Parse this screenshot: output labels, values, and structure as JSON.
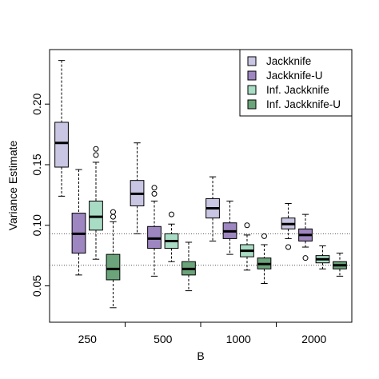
{
  "chart_data": {
    "type": "boxplot",
    "title": "",
    "xlabel": "B",
    "ylabel": "Variance Estimate",
    "categories": [
      "250",
      "500",
      "1000",
      "2000"
    ],
    "ylim": [
      0.02,
      0.245
    ],
    "yticks": [
      0.05,
      0.1,
      0.15,
      0.2
    ],
    "ytick_labels": [
      "0.05",
      "0.10",
      "0.15",
      "0.20"
    ],
    "reference_lines": [
      0.093,
      0.067
    ],
    "grid": false,
    "legend_position": "top-right",
    "series": [
      {
        "name": "Jackknife",
        "color": "#c9c6e3",
        "boxes": [
          {
            "lower_whisker": 0.124,
            "q1": 0.148,
            "median": 0.168,
            "q3": 0.185,
            "upper_whisker": 0.236,
            "outliers": []
          },
          {
            "lower_whisker": 0.093,
            "q1": 0.116,
            "median": 0.126,
            "q3": 0.137,
            "upper_whisker": 0.168,
            "outliers": []
          },
          {
            "lower_whisker": 0.087,
            "q1": 0.106,
            "median": 0.114,
            "q3": 0.122,
            "upper_whisker": 0.14,
            "outliers": []
          },
          {
            "lower_whisker": 0.089,
            "q1": 0.097,
            "median": 0.101,
            "q3": 0.106,
            "upper_whisker": 0.118,
            "outliers": [
              0.082
            ]
          }
        ]
      },
      {
        "name": "Jackknife-U",
        "color": "#9e86c1",
        "boxes": [
          {
            "lower_whisker": 0.059,
            "q1": 0.077,
            "median": 0.093,
            "q3": 0.11,
            "upper_whisker": 0.146,
            "outliers": []
          },
          {
            "lower_whisker": 0.058,
            "q1": 0.081,
            "median": 0.089,
            "q3": 0.099,
            "upper_whisker": 0.12,
            "outliers": [
              0.131,
              0.126
            ]
          },
          {
            "lower_whisker": 0.076,
            "q1": 0.089,
            "median": 0.095,
            "q3": 0.102,
            "upper_whisker": 0.12,
            "outliers": []
          },
          {
            "lower_whisker": 0.082,
            "q1": 0.087,
            "median": 0.092,
            "q3": 0.097,
            "upper_whisker": 0.109,
            "outliers": [
              0.073
            ]
          }
        ]
      },
      {
        "name": "Inf. Jackknife",
        "color": "#a9dcc4",
        "boxes": [
          {
            "lower_whisker": 0.072,
            "q1": 0.096,
            "median": 0.107,
            "q3": 0.12,
            "upper_whisker": 0.152,
            "outliers": [
              0.163,
              0.158
            ]
          },
          {
            "lower_whisker": 0.07,
            "q1": 0.081,
            "median": 0.087,
            "q3": 0.093,
            "upper_whisker": 0.101,
            "outliers": [
              0.109
            ]
          },
          {
            "lower_whisker": 0.063,
            "q1": 0.074,
            "median": 0.079,
            "q3": 0.084,
            "upper_whisker": 0.092,
            "outliers": [
              0.1
            ]
          },
          {
            "lower_whisker": 0.064,
            "q1": 0.069,
            "median": 0.072,
            "q3": 0.075,
            "upper_whisker": 0.083,
            "outliers": []
          }
        ]
      },
      {
        "name": "Inf. Jackknife-U",
        "color": "#6ba37a",
        "boxes": [
          {
            "lower_whisker": 0.032,
            "q1": 0.055,
            "median": 0.064,
            "q3": 0.076,
            "upper_whisker": 0.103,
            "outliers": [
              0.111,
              0.107
            ]
          },
          {
            "lower_whisker": 0.046,
            "q1": 0.059,
            "median": 0.064,
            "q3": 0.07,
            "upper_whisker": 0.086,
            "outliers": []
          },
          {
            "lower_whisker": 0.052,
            "q1": 0.064,
            "median": 0.068,
            "q3": 0.073,
            "upper_whisker": 0.084,
            "outliers": [
              0.091
            ]
          },
          {
            "lower_whisker": 0.058,
            "q1": 0.064,
            "median": 0.067,
            "q3": 0.07,
            "upper_whisker": 0.077,
            "outliers": []
          }
        ]
      }
    ]
  }
}
